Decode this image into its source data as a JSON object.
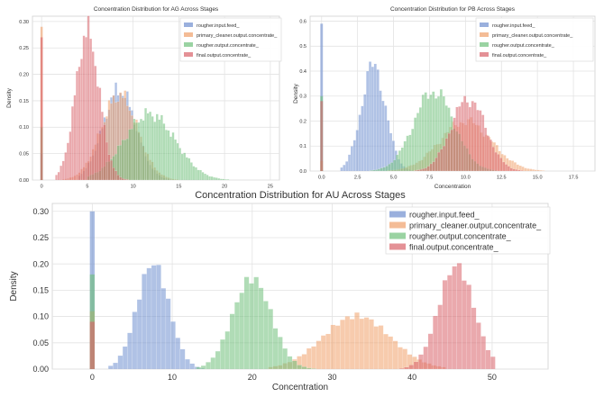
{
  "chart_data": [
    {
      "type": "histogram",
      "title": "Concentration Distribution for AG Across Stages",
      "xlabel": "",
      "ylabel": "Density",
      "xlim": [
        -1,
        26
      ],
      "ylim": [
        0,
        0.31
      ],
      "xticks": [
        0,
        5,
        10,
        15,
        20,
        25
      ],
      "yticks": [
        0.0,
        0.05,
        0.1,
        0.15,
        0.2,
        0.25,
        0.3
      ],
      "xtick_labels": [
        "0",
        "5",
        "10",
        "15",
        "20",
        "25"
      ],
      "ytick_labels": [
        "0.00",
        "0.05",
        "0.10",
        "0.15",
        "0.20",
        "0.25",
        "0.30"
      ],
      "grid": true,
      "legend": "top-right",
      "bin_width": 0.25,
      "series": [
        {
          "name": "rougher.input.feed_",
          "color": "#6f8fcf",
          "spike": {
            "x": 0,
            "h": 0.05
          },
          "dist": {
            "mean": 8.5,
            "sd": 1.8,
            "peak": 0.17
          },
          "range": [
            4,
            14
          ]
        },
        {
          "name": "primary_cleaner.output.concentrate_",
          "color": "#f0a06a",
          "spike": {
            "x": 0,
            "h": 0.29
          },
          "dist": {
            "mean": 8.5,
            "sd": 2.0,
            "peak": 0.16
          },
          "range": [
            1,
            18
          ]
        },
        {
          "name": "rougher.output.concentrate_",
          "color": "#6fc07a",
          "spike": {
            "x": 0,
            "h": 0.1
          },
          "dist": {
            "mean": 11.8,
            "sd": 2.8,
            "peak": 0.125
          },
          "range": [
            5,
            21
          ]
        },
        {
          "name": "final.output.concentrate_",
          "color": "#d9626a",
          "spike": {
            "x": 0,
            "h": 0.27
          },
          "dist": {
            "mean": 5.0,
            "sd": 1.3,
            "peak": 0.28
          },
          "range": [
            1.5,
            13
          ]
        }
      ]
    },
    {
      "type": "histogram",
      "title": "Concentration Distribution for PB Across Stages",
      "xlabel": "Concentration",
      "ylabel": "Density",
      "xlim": [
        -0.8,
        19
      ],
      "ylim": [
        0,
        0.62
      ],
      "xticks": [
        0,
        2.5,
        5,
        7.5,
        10,
        12.5,
        15,
        17.5
      ],
      "yticks": [
        0.0,
        0.1,
        0.2,
        0.3,
        0.4,
        0.5,
        0.6
      ],
      "xtick_labels": [
        "0.0",
        "2.5",
        "5.0",
        "7.5",
        "10.0",
        "12.5",
        "15.0",
        "17.5"
      ],
      "ytick_labels": [
        "0.0",
        "0.1",
        "0.2",
        "0.3",
        "0.4",
        "0.5",
        "0.6"
      ],
      "grid": true,
      "legend": "top-right",
      "bin_width": 0.18,
      "series": [
        {
          "name": "rougher.input.feed_",
          "color": "#6f8fcf",
          "spike": {
            "x": 0,
            "h": 0.59
          },
          "dist": {
            "mean": 3.6,
            "sd": 0.85,
            "peak": 0.42
          },
          "range": [
            1.3,
            7.5
          ]
        },
        {
          "name": "primary_cleaner.output.concentrate_",
          "color": "#f0a06a",
          "spike": {
            "x": 0,
            "h": 0.04
          },
          "dist": {
            "mean": 10.0,
            "sd": 1.8,
            "peak": 0.2
          },
          "range": [
            4,
            15.5
          ]
        },
        {
          "name": "rougher.output.concentrate_",
          "color": "#6fc07a",
          "spike": {
            "x": 0,
            "h": 0.3
          },
          "dist": {
            "mean": 7.8,
            "sd": 1.4,
            "peak": 0.32
          },
          "range": [
            3,
            12
          ]
        },
        {
          "name": "final.output.concentrate_",
          "color": "#d9626a",
          "spike": {
            "x": 0,
            "h": 0.28
          },
          "dist": {
            "mean": 10.2,
            "sd": 1.2,
            "peak": 0.29
          },
          "range": [
            5,
            14
          ]
        }
      ]
    },
    {
      "type": "histogram",
      "title": "Concentration Distribution for AU Across Stages",
      "xlabel": "Concentration",
      "ylabel": "Density",
      "xlim": [
        -5,
        57
      ],
      "ylim": [
        0,
        0.315
      ],
      "xticks": [
        0,
        10,
        20,
        30,
        40,
        50
      ],
      "yticks": [
        0.0,
        0.05,
        0.1,
        0.15,
        0.2,
        0.25,
        0.3
      ],
      "xtick_labels": [
        "0",
        "10",
        "20",
        "30",
        "40",
        "50"
      ],
      "ytick_labels": [
        "0.00",
        "0.05",
        "0.10",
        "0.15",
        "0.20",
        "0.25",
        "0.30"
      ],
      "grid": true,
      "legend": "top-right",
      "bin_width": 0.6,
      "series": [
        {
          "name": "rougher.input.feed_",
          "color": "#6f8fcf",
          "spike": {
            "x": 0,
            "h": 0.3
          },
          "dist": {
            "mean": 7.6,
            "sd": 2.0,
            "peak": 0.19
          },
          "range": [
            2,
            17
          ]
        },
        {
          "name": "primary_cleaner.output.concentrate_",
          "color": "#f0a06a",
          "spike": {
            "x": 0,
            "h": 0.11
          },
          "dist": {
            "mean": 33.0,
            "sd": 4.2,
            "peak": 0.105
          },
          "range": [
            22,
            44
          ]
        },
        {
          "name": "rougher.output.concentrate_",
          "color": "#6fc07a",
          "spike": {
            "x": 0,
            "h": 0.18
          },
          "dist": {
            "mean": 20.0,
            "sd": 2.4,
            "peak": 0.17
          },
          "range": [
            13,
            28
          ]
        },
        {
          "name": "final.output.concentrate_",
          "color": "#d9626a",
          "spike": {
            "x": 0,
            "h": 0.09
          },
          "dist": {
            "mean": 45.5,
            "sd": 2.2,
            "peak": 0.19
          },
          "range": [
            33,
            50
          ]
        }
      ]
    }
  ]
}
